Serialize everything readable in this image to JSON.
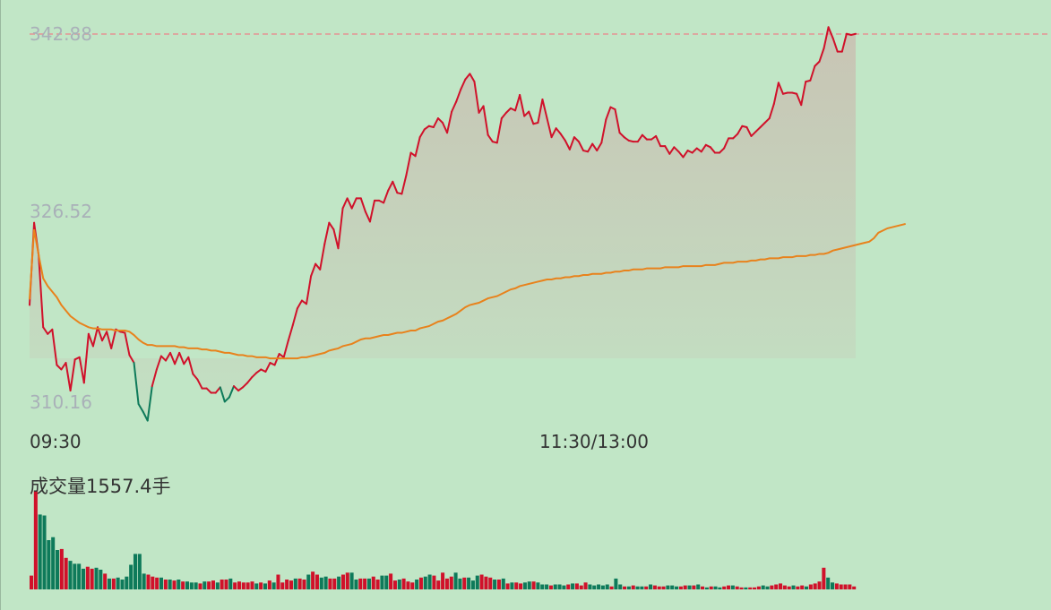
{
  "colors": {
    "up": "#d0112a",
    "down": "#0e7a5a",
    "avg_line": "#e8821c",
    "ref_line": "#e59494",
    "price_label": "#a9b0b8",
    "background": "#c1e6c6"
  },
  "chart_data": [
    {
      "type": "line",
      "title": "",
      "price_axis_labels": [
        "342.88",
        "326.52",
        "310.16"
      ],
      "time_axis_labels": [
        "09:30",
        "11:30/13:00"
      ],
      "ylim": [
        310.16,
        342.88
      ],
      "ref_value": 342.88,
      "grid": false,
      "legend": "none",
      "series": [
        {
          "key": "price",
          "values": [
            318.5,
            325.9,
            323.0,
            316.5,
            315.9,
            316.3,
            313.1,
            312.7,
            313.3,
            310.8,
            313.6,
            313.8,
            311.5,
            315.9,
            314.8,
            316.5,
            315.3,
            316.1,
            314.6,
            316.3,
            316.1,
            316.0,
            314.0,
            313.3,
            309.6,
            308.9,
            308.1,
            311.2,
            312.7,
            313.9,
            313.5,
            314.2,
            313.2,
            314.2,
            313.2,
            313.8,
            312.3,
            311.8,
            311.0,
            311.0,
            310.6,
            310.6,
            311.1,
            309.8,
            310.2,
            311.2,
            310.8,
            311.1,
            311.5,
            312.0,
            312.4,
            312.7,
            312.5,
            313.3,
            313.1,
            314.1,
            313.8,
            315.3,
            316.7,
            318.2,
            318.9,
            318.6,
            321.1,
            322.2,
            321.7,
            324.0,
            325.9,
            325.3,
            323.6,
            327.2,
            328.1,
            327.2,
            328.1,
            328.1,
            326.9,
            326.0,
            327.9,
            327.9,
            327.7,
            328.8,
            329.6,
            328.6,
            328.5,
            330.2,
            332.2,
            331.9,
            333.6,
            334.3,
            334.6,
            334.5,
            335.3,
            334.9,
            334.0,
            335.9,
            336.8,
            337.9,
            338.8,
            339.3,
            338.6,
            335.8,
            336.4,
            333.8,
            333.2,
            333.1,
            335.3,
            335.8,
            336.2,
            336.0,
            337.4,
            335.5,
            335.9,
            334.8,
            334.9,
            337.0,
            335.3,
            333.6,
            334.4,
            333.9,
            333.3,
            332.5,
            333.6,
            333.2,
            332.4,
            332.3,
            333.0,
            332.4,
            333.1,
            335.2,
            336.3,
            336.1,
            334.0,
            333.6,
            333.3,
            333.2,
            333.2,
            333.8,
            333.4,
            333.4,
            333.7,
            332.8,
            332.8,
            332.1,
            332.7,
            332.3,
            331.8,
            332.4,
            332.2,
            332.6,
            332.3,
            332.9,
            332.7,
            332.2,
            332.2,
            332.6,
            333.5,
            333.5,
            333.9,
            334.6,
            334.5,
            333.7,
            334.1,
            334.5,
            334.9,
            335.3,
            336.6,
            338.5,
            337.5,
            337.6,
            337.6,
            337.5,
            336.5,
            338.6,
            338.7,
            340.0,
            340.4,
            341.6,
            343.5,
            342.5,
            341.3,
            341.3,
            342.9,
            342.8,
            342.9
          ]
        },
        {
          "key": "average",
          "values": [
            319.0,
            325.3,
            323.0,
            320.9,
            320.2,
            319.7,
            319.2,
            318.5,
            318.0,
            317.5,
            317.2,
            316.9,
            316.7,
            316.5,
            316.4,
            316.4,
            316.3,
            316.3,
            316.3,
            316.2,
            316.2,
            316.2,
            316.1,
            315.8,
            315.4,
            315.1,
            314.9,
            314.9,
            314.8,
            314.8,
            314.8,
            314.8,
            314.8,
            314.7,
            314.7,
            314.6,
            314.6,
            314.6,
            314.5,
            314.5,
            314.4,
            314.4,
            314.3,
            314.2,
            314.2,
            314.1,
            314.0,
            314.0,
            313.9,
            313.9,
            313.8,
            313.8,
            313.8,
            313.7,
            313.7,
            313.7,
            313.7,
            313.7,
            313.7,
            313.7,
            313.8,
            313.8,
            313.9,
            314.0,
            314.1,
            314.2,
            314.4,
            314.5,
            314.6,
            314.8,
            314.9,
            315.0,
            315.2,
            315.4,
            315.5,
            315.5,
            315.6,
            315.7,
            315.8,
            315.8,
            315.9,
            316.0,
            316.0,
            316.1,
            316.2,
            316.2,
            316.4,
            316.5,
            316.6,
            316.8,
            317.0,
            317.1,
            317.3,
            317.5,
            317.7,
            318.0,
            318.3,
            318.5,
            318.6,
            318.7,
            318.9,
            319.1,
            319.2,
            319.3,
            319.5,
            319.7,
            319.9,
            320.0,
            320.2,
            320.3,
            320.4,
            320.5,
            320.6,
            320.7,
            320.8,
            320.8,
            320.9,
            320.9,
            321.0,
            321.0,
            321.1,
            321.1,
            321.2,
            321.2,
            321.3,
            321.3,
            321.3,
            321.4,
            321.4,
            321.5,
            321.5,
            321.6,
            321.6,
            321.7,
            321.7,
            321.7,
            321.8,
            321.8,
            321.8,
            321.8,
            321.9,
            321.9,
            321.9,
            321.9,
            322.0,
            322.0,
            322.0,
            322.0,
            322.0,
            322.1,
            322.1,
            322.1,
            322.2,
            322.3,
            322.3,
            322.3,
            322.4,
            322.4,
            322.4,
            322.5,
            322.5,
            322.6,
            322.6,
            322.7,
            322.7,
            322.7,
            322.8,
            322.8,
            322.8,
            322.9,
            322.9,
            322.9,
            323.0,
            323.0,
            323.1,
            323.1,
            323.2,
            323.4,
            323.5,
            323.6,
            323.7,
            323.8,
            323.9,
            324.0,
            324.1,
            324.2,
            324.5,
            325.0,
            325.2,
            325.4,
            325.5,
            325.6,
            325.7,
            325.8
          ]
        }
      ]
    },
    {
      "type": "bar",
      "title": "成交量1557.4手",
      "values": [
        14,
        100,
        76,
        75,
        50,
        53,
        40,
        41,
        32,
        29,
        26,
        26,
        21,
        23,
        21,
        22,
        20,
        16,
        11,
        11,
        12,
        10,
        13,
        25,
        36,
        36,
        16,
        15,
        13,
        12,
        12,
        10,
        10,
        9,
        10,
        8,
        8,
        7,
        7,
        6,
        8,
        8,
        9,
        7,
        10,
        10,
        11,
        7,
        8,
        7,
        7,
        8,
        6,
        7,
        6,
        9,
        7,
        15,
        7,
        10,
        9,
        11,
        11,
        10,
        15,
        18,
        15,
        12,
        13,
        11,
        11,
        13,
        15,
        17,
        17,
        10,
        11,
        11,
        11,
        13,
        10,
        14,
        14,
        16,
        9,
        10,
        11,
        8,
        7,
        10,
        12,
        13,
        15,
        14,
        9,
        17,
        11,
        13,
        17,
        11,
        12,
        12,
        9,
        14,
        15,
        13,
        12,
        10,
        10,
        11,
        6,
        7,
        7,
        6,
        7,
        8,
        8,
        7,
        5,
        5,
        4,
        5,
        5,
        4,
        5,
        6,
        6,
        4,
        7,
        5,
        4,
        5,
        4,
        5,
        3,
        11,
        5,
        3,
        3,
        4,
        3,
        3,
        3,
        5,
        4,
        3,
        3,
        4,
        4,
        3,
        3,
        4,
        4,
        4,
        5,
        3,
        2,
        3,
        3,
        2,
        3,
        4,
        4,
        3,
        2,
        2,
        2,
        2,
        3,
        4,
        3,
        4,
        5,
        6,
        4,
        3,
        4,
        3,
        4,
        3,
        5,
        6,
        8,
        22,
        12,
        7,
        6,
        5,
        5,
        5,
        3
      ],
      "up": [
        1,
        1,
        0,
        0,
        0,
        0,
        0,
        1,
        1,
        0,
        0,
        0,
        0,
        1,
        1,
        0,
        0,
        1,
        0,
        1,
        0,
        0,
        0,
        0,
        0,
        0,
        0,
        1,
        1,
        1,
        0,
        1,
        0,
        1,
        0,
        1,
        0,
        0,
        0,
        1,
        0,
        1,
        1,
        0,
        1,
        1,
        0,
        1,
        1,
        1,
        1,
        1,
        0,
        1,
        0,
        1,
        0,
        1,
        1,
        1,
        1,
        0,
        1,
        1,
        0,
        1,
        1,
        0,
        0,
        1,
        1,
        0,
        1,
        1,
        0,
        0,
        1,
        1,
        0,
        1,
        1,
        0,
        0,
        1,
        1,
        0,
        1,
        1,
        1,
        0,
        1,
        0,
        0,
        1,
        1,
        1,
        1,
        1,
        0,
        0,
        1,
        0,
        0,
        0,
        1,
        1,
        1,
        0,
        1,
        0,
        1,
        0,
        1,
        1,
        0,
        0,
        1,
        0,
        0,
        0,
        1,
        0,
        0,
        0,
        1,
        0,
        1,
        1,
        1,
        0,
        0,
        0,
        0,
        0,
        1,
        0,
        0,
        1,
        0,
        1,
        0,
        0,
        1,
        0,
        1,
        1,
        1,
        0,
        0,
        0,
        1,
        1,
        0,
        1,
        0,
        1,
        0,
        1,
        0,
        0,
        1,
        1,
        0,
        1,
        1,
        0,
        1,
        1,
        1,
        0,
        0,
        1,
        1,
        1,
        1,
        1,
        0,
        1,
        1,
        0,
        1,
        1,
        1,
        1,
        0,
        0,
        1,
        1,
        1,
        1,
        1
      ]
    }
  ]
}
